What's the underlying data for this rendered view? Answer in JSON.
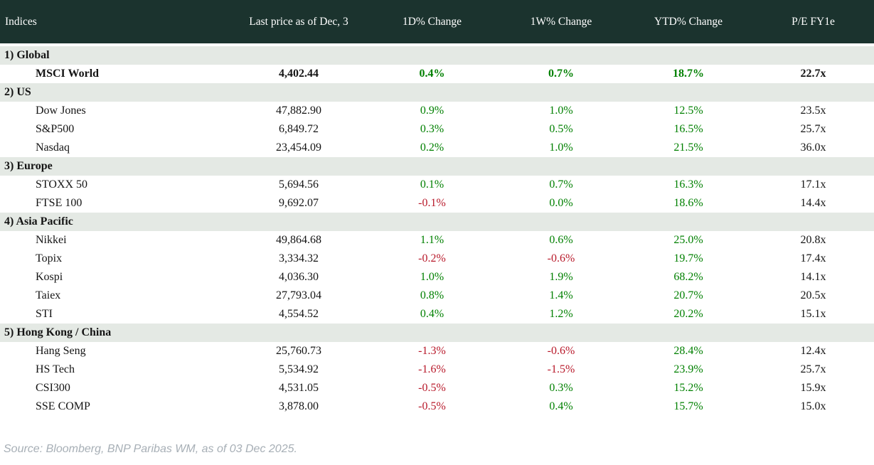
{
  "colors": {
    "header_bg": "#1b332e",
    "section_bg": "#e4e9e4",
    "positive": "#008000",
    "negative": "#b8192a",
    "text": "#141414",
    "source_text": "#a7afb6"
  },
  "chart_data": {
    "type": "table",
    "title": "Indices",
    "columns": [
      "Indices",
      "Last price as of Dec, 3",
      "1D% Change",
      "1W% Change",
      "YTD% Change",
      "P/E FY1e"
    ],
    "sections": [
      {
        "label": "1) Global",
        "rows": [
          {
            "name": "MSCI World",
            "last_price": "4,402.44",
            "d1_change": "0.4%",
            "w1_change": "0.7%",
            "ytd_change": "18.7%",
            "pe_fy1e": "22.7x"
          }
        ]
      },
      {
        "label": "2) US",
        "rows": [
          {
            "name": "Dow Jones",
            "last_price": "47,882.90",
            "d1_change": "0.9%",
            "w1_change": "1.0%",
            "ytd_change": "12.5%",
            "pe_fy1e": "23.5x"
          },
          {
            "name": "S&P500",
            "last_price": "6,849.72",
            "d1_change": "0.3%",
            "w1_change": "0.5%",
            "ytd_change": "16.5%",
            "pe_fy1e": "25.7x"
          },
          {
            "name": "Nasdaq",
            "last_price": "23,454.09",
            "d1_change": "0.2%",
            "w1_change": "1.0%",
            "ytd_change": "21.5%",
            "pe_fy1e": "36.0x"
          }
        ]
      },
      {
        "label": "3) Europe",
        "rows": [
          {
            "name": "STOXX 50",
            "last_price": "5,694.56",
            "d1_change": "0.1%",
            "w1_change": "0.7%",
            "ytd_change": "16.3%",
            "pe_fy1e": "17.1x"
          },
          {
            "name": "FTSE 100",
            "last_price": "9,692.07",
            "d1_change": "-0.1%",
            "w1_change": "0.0%",
            "ytd_change": "18.6%",
            "pe_fy1e": "14.4x"
          }
        ]
      },
      {
        "label": "4) Asia Pacific",
        "rows": [
          {
            "name": "Nikkei",
            "last_price": "49,864.68",
            "d1_change": "1.1%",
            "w1_change": "0.6%",
            "ytd_change": "25.0%",
            "pe_fy1e": "20.8x"
          },
          {
            "name": "Topix",
            "last_price": "3,334.32",
            "d1_change": "-0.2%",
            "w1_change": "-0.6%",
            "ytd_change": "19.7%",
            "pe_fy1e": "17.4x"
          },
          {
            "name": "Kospi",
            "last_price": "4,036.30",
            "d1_change": "1.0%",
            "w1_change": "1.9%",
            "ytd_change": "68.2%",
            "pe_fy1e": "14.1x"
          },
          {
            "name": "Taiex",
            "last_price": "27,793.04",
            "d1_change": "0.8%",
            "w1_change": "1.4%",
            "ytd_change": "20.7%",
            "pe_fy1e": "20.5x"
          },
          {
            "name": "STI",
            "last_price": "4,554.52",
            "d1_change": "0.4%",
            "w1_change": "1.2%",
            "ytd_change": "20.2%",
            "pe_fy1e": "15.1x"
          }
        ]
      },
      {
        "label": "5) Hong Kong / China",
        "rows": [
          {
            "name": "Hang Seng",
            "last_price": "25,760.73",
            "d1_change": "-1.3%",
            "w1_change": "-0.6%",
            "ytd_change": "28.4%",
            "pe_fy1e": "12.4x"
          },
          {
            "name": "HS Tech",
            "last_price": "5,534.92",
            "d1_change": "-1.6%",
            "w1_change": "-1.5%",
            "ytd_change": "23.9%",
            "pe_fy1e": "25.7x"
          },
          {
            "name": "CSI300",
            "last_price": "4,531.05",
            "d1_change": "-0.5%",
            "w1_change": "0.3%",
            "ytd_change": "15.2%",
            "pe_fy1e": "15.9x"
          },
          {
            "name": "SSE COMP",
            "last_price": "3,878.00",
            "d1_change": "-0.5%",
            "w1_change": "0.4%",
            "ytd_change": "15.7%",
            "pe_fy1e": "15.0x"
          }
        ]
      }
    ]
  },
  "source_note": "Source: Bloomberg, BNP Paribas WM, as of 03 Dec 2025."
}
